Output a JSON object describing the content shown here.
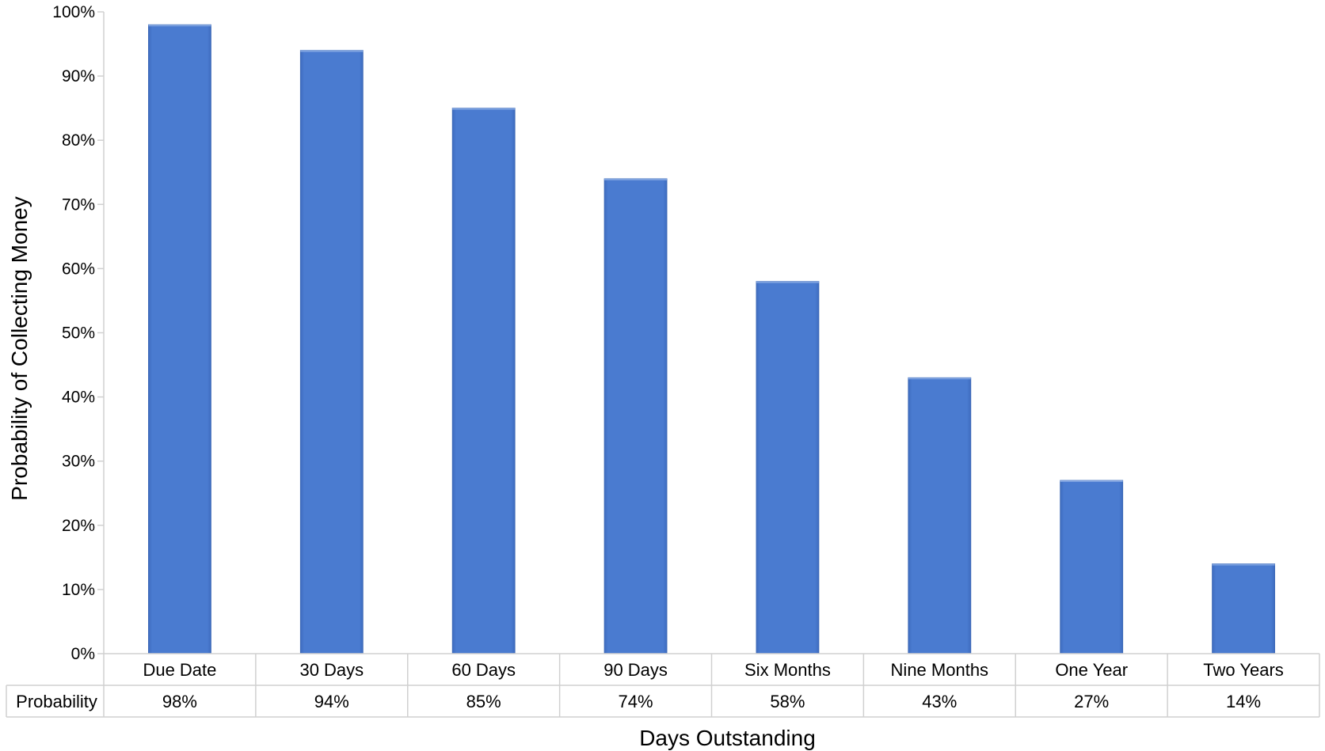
{
  "chart_data": {
    "type": "bar",
    "categories": [
      "Due Date",
      "30 Days",
      "60 Days",
      "90 Days",
      "Six Months",
      "Nine Months",
      "One Year",
      "Two Years"
    ],
    "series": [
      {
        "name": "Probability",
        "values": [
          98,
          94,
          85,
          74,
          58,
          43,
          27,
          14
        ]
      }
    ],
    "data_table": {
      "row_header": "Probability",
      "cells": [
        "98%",
        "94%",
        "85%",
        "74%",
        "58%",
        "43%",
        "27%",
        "14%"
      ]
    },
    "xlabel": "Days Outstanding",
    "ylabel": "Probability of Collecting Money",
    "ylim": [
      0,
      100
    ],
    "y_ticks": [
      0,
      10,
      20,
      30,
      40,
      50,
      60,
      70,
      80,
      90,
      100
    ],
    "y_tick_labels": [
      "0%",
      "10%",
      "20%",
      "30%",
      "40%",
      "50%",
      "60%",
      "70%",
      "80%",
      "90%",
      "100%"
    ],
    "bar_color": "#4a7bd0",
    "grid": false,
    "legend": "none"
  }
}
